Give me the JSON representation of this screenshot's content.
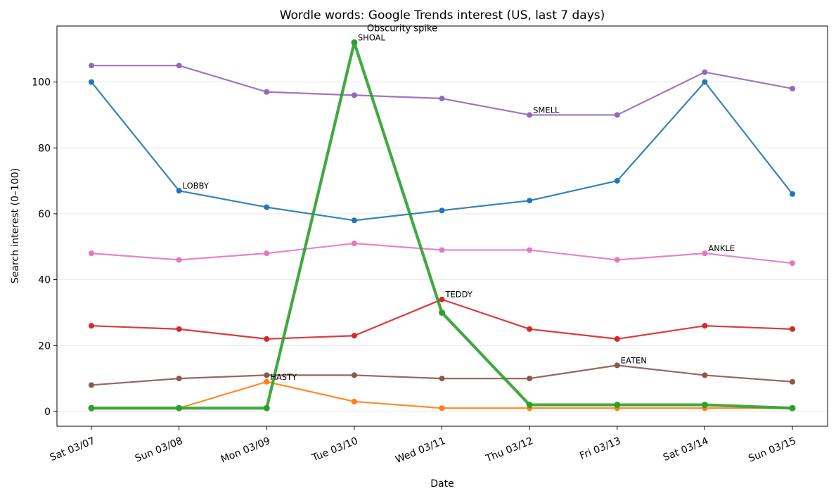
{
  "chart_data": {
    "type": "line",
    "title": "Wordle words: Google Trends interest (US, last 7 days)",
    "xlabel": "Date",
    "ylabel": "Search interest (0–100)",
    "categories": [
      "Sat 03/07",
      "Sun 03/08",
      "Mon 03/09",
      "Tue 03/10",
      "Wed 03/11",
      "Thu 03/12",
      "Fri 03/13",
      "Sat 03/14",
      "Sun 03/15"
    ],
    "ylim": [
      -4.5,
      117
    ],
    "yticks": [
      0,
      20,
      40,
      60,
      80,
      100
    ],
    "grid": "horizontal",
    "legend": "none",
    "series": [
      {
        "color": "#1f77b4",
        "values": [
          100,
          67,
          62,
          58,
          61,
          64,
          70,
          100,
          66
        ],
        "width": 2.2
      },
      {
        "color": "#9467bd",
        "values": [
          105,
          105,
          97,
          96,
          95,
          90,
          90,
          103,
          98
        ],
        "width": 2.2
      },
      {
        "color": "#e377c2",
        "values": [
          48,
          46,
          48,
          51,
          49,
          49,
          46,
          48,
          45
        ],
        "width": 2.2
      },
      {
        "color": "#d62728",
        "values": [
          26,
          25,
          22,
          23,
          34,
          25,
          22,
          26,
          25
        ],
        "width": 2.2
      },
      {
        "color": "#8c564b",
        "values": [
          8,
          10,
          11,
          11,
          10,
          10,
          14,
          11,
          9
        ],
        "width": 2.2
      },
      {
        "color": "#ff7f0e",
        "values": [
          1,
          1,
          9,
          3,
          1,
          1,
          1,
          1,
          1
        ],
        "width": 2.2
      },
      {
        "color": "#2ca02c",
        "values": [
          1,
          1,
          1,
          112,
          30,
          2,
          2,
          2,
          1
        ],
        "width": 4.2
      }
    ],
    "annotations": [
      {
        "text": "LOBBY",
        "x": 1,
        "y": 67,
        "series_index": 0
      },
      {
        "text": "SMELL",
        "x": 5,
        "y": 90,
        "series_index": 1
      },
      {
        "text": "ANKLE",
        "x": 7,
        "y": 48,
        "series_index": 2
      },
      {
        "text": "TEDDY",
        "x": 4,
        "y": 34,
        "series_index": 3
      },
      {
        "text": "EATEN",
        "x": 6,
        "y": 14,
        "series_index": 4
      },
      {
        "text": "HASTY",
        "x": 2,
        "y": 9,
        "series_index": 5
      },
      {
        "text": "SHOAL",
        "x": 3,
        "y": 112,
        "series_index": 6
      }
    ],
    "spike_annotation": {
      "text": "Obscurity spike",
      "x": 3,
      "y": 112
    }
  }
}
